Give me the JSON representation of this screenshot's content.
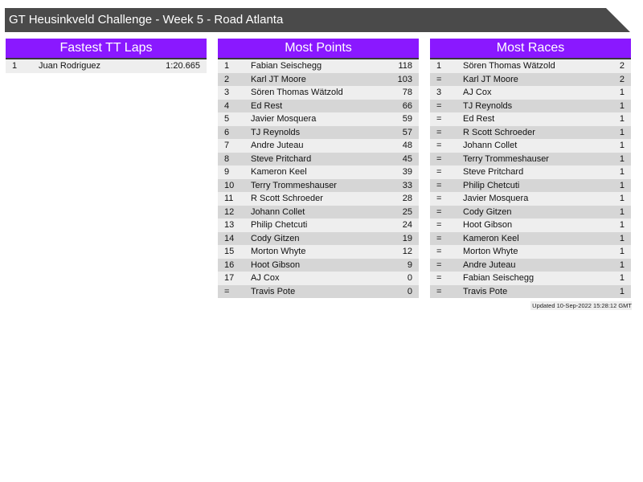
{
  "header": {
    "title": "GT Heusinkveld Challenge - Week 5 - Road Atlanta"
  },
  "colors": {
    "header_bg": "#4a4a4a",
    "panel_title_bg": "#8a18ff",
    "row_odd": "#eeeeee",
    "row_even": "#d6d6d6"
  },
  "panels": [
    {
      "title": "Fastest TT Laps",
      "rows": [
        [
          "1",
          "Juan Rodriguez",
          "1:20.665"
        ]
      ]
    },
    {
      "title": "Most Points",
      "rows": [
        [
          "1",
          "Fabian Seischegg",
          "118"
        ],
        [
          "2",
          "Karl JT Moore",
          "103"
        ],
        [
          "3",
          "Sören Thomas Wätzold",
          "78"
        ],
        [
          "4",
          "Ed Rest",
          "66"
        ],
        [
          "5",
          "Javier Mosquera",
          "59"
        ],
        [
          "6",
          "TJ Reynolds",
          "57"
        ],
        [
          "7",
          "Andre Juteau",
          "48"
        ],
        [
          "8",
          "Steve Pritchard",
          "45"
        ],
        [
          "9",
          "Kameron Keel",
          "39"
        ],
        [
          "10",
          "Terry Trommeshauser",
          "33"
        ],
        [
          "11",
          "R Scott Schroeder",
          "28"
        ],
        [
          "12",
          "Johann Collet",
          "25"
        ],
        [
          "13",
          "Philip Chetcuti",
          "24"
        ],
        [
          "14",
          "Cody Gitzen",
          "19"
        ],
        [
          "15",
          "Morton Whyte",
          "12"
        ],
        [
          "16",
          "Hoot Gibson",
          "9"
        ],
        [
          "17",
          "AJ Cox",
          "0"
        ],
        [
          "=",
          "Travis Pote",
          "0"
        ]
      ]
    },
    {
      "title": "Most Races",
      "rows": [
        [
          "1",
          "Sören Thomas Wätzold",
          "2"
        ],
        [
          "=",
          "Karl JT Moore",
          "2"
        ],
        [
          "3",
          "AJ Cox",
          "1"
        ],
        [
          "=",
          "TJ Reynolds",
          "1"
        ],
        [
          "=",
          "Ed Rest",
          "1"
        ],
        [
          "=",
          "R Scott Schroeder",
          "1"
        ],
        [
          "=",
          "Johann Collet",
          "1"
        ],
        [
          "=",
          "Terry Trommeshauser",
          "1"
        ],
        [
          "=",
          "Steve Pritchard",
          "1"
        ],
        [
          "=",
          "Philip Chetcuti",
          "1"
        ],
        [
          "=",
          "Javier Mosquera",
          "1"
        ],
        [
          "=",
          "Cody Gitzen",
          "1"
        ],
        [
          "=",
          "Hoot Gibson",
          "1"
        ],
        [
          "=",
          "Kameron Keel",
          "1"
        ],
        [
          "=",
          "Morton Whyte",
          "1"
        ],
        [
          "=",
          "Andre Juteau",
          "1"
        ],
        [
          "=",
          "Fabian Seischegg",
          "1"
        ],
        [
          "=",
          "Travis Pote",
          "1"
        ]
      ]
    }
  ],
  "footer": {
    "updated": "Updated 10-Sep-2022 15:28:12 GMT"
  }
}
